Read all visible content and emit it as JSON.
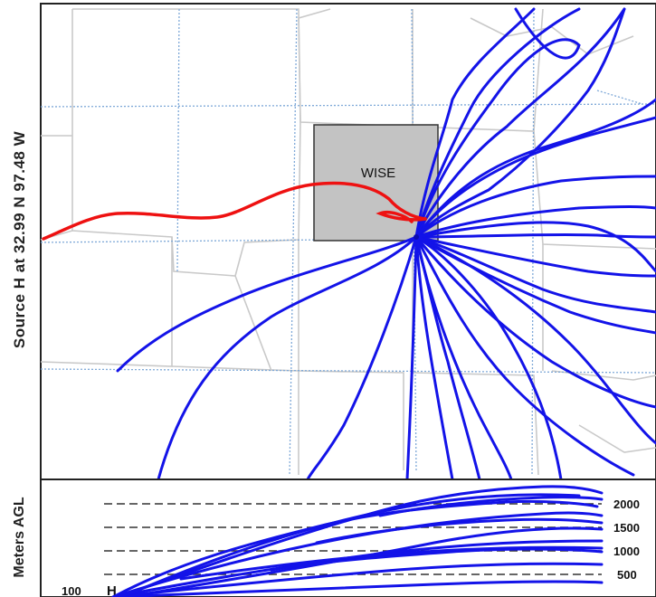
{
  "title_vertical": "Source H   at   32.99 N   97.48 W",
  "source": {
    "marker": "H",
    "lat": "32.99 N",
    "lon": "97.48 W"
  },
  "county_label": "WISE",
  "height_panel": {
    "ylabel": "Meters AGL",
    "base_label": "100",
    "levels": [
      "2000",
      "1500",
      "1000",
      "500"
    ]
  },
  "colors": {
    "trajectory": "#1313e8",
    "highlight_trajectory": "#ee1111",
    "county_fill": "#c3c3c3"
  }
}
